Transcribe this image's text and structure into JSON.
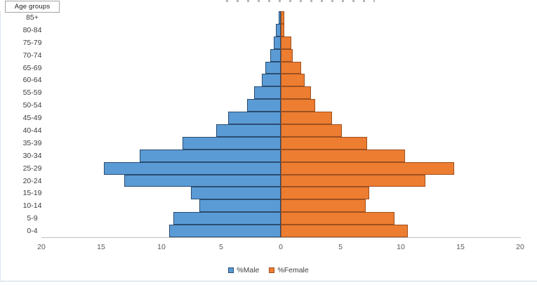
{
  "age_column": {
    "header": "Age groups"
  },
  "chart_data": {
    "type": "bar",
    "subtype": "population-pyramid",
    "orientation": "horizontal",
    "categories": [
      "85+",
      "80-84",
      "75-79",
      "70-74",
      "65-69",
      "60-64",
      "55-59",
      "50-54",
      "45-49",
      "40-44",
      "35-39",
      "30-34",
      "25-29",
      "20-24",
      "15-19",
      "10-14",
      "5-9",
      "0-4"
    ],
    "series": [
      {
        "name": "%Male",
        "side": "left",
        "color": "#5B9BD5",
        "border_color": "#2A4D71",
        "values": [
          0.2,
          0.4,
          0.6,
          0.9,
          1.3,
          1.6,
          2.2,
          2.8,
          4.4,
          5.4,
          8.2,
          11.8,
          14.8,
          13.1,
          7.5,
          6.8,
          9.0,
          9.3
        ]
      },
      {
        "name": "%Female",
        "side": "right",
        "color": "#ED7D31",
        "border_color": "#9E5120",
        "values": [
          0.3,
          0.3,
          0.9,
          1.0,
          1.7,
          2.0,
          2.5,
          2.9,
          4.3,
          5.1,
          7.2,
          10.4,
          14.5,
          12.1,
          7.4,
          7.1,
          9.5,
          10.6
        ]
      }
    ],
    "x_ticks": [
      "20",
      "15",
      "10",
      "5",
      "0",
      "5",
      "10",
      "15",
      "20"
    ],
    "xlim": [
      -20,
      20
    ],
    "gap_width_percent": 0,
    "grid": false,
    "legend_position": "bottom",
    "axis_line_color": "#BFBFBF",
    "tick_label_color": "#595959"
  }
}
